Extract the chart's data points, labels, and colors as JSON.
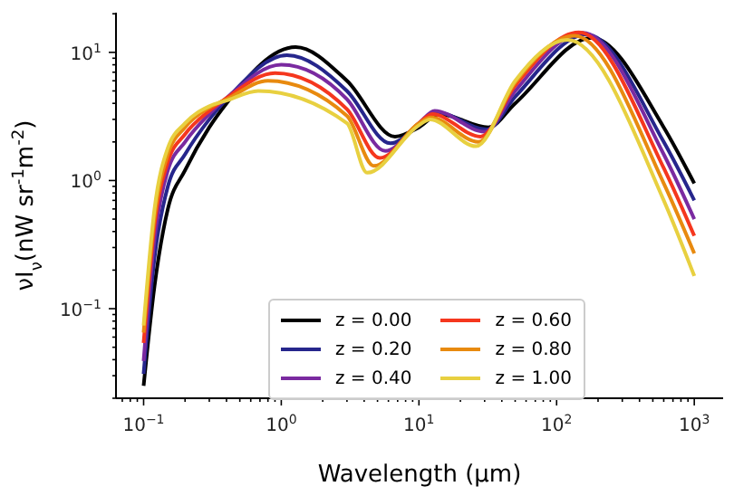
{
  "chart_data": {
    "type": "line",
    "xlabel": "Wavelength (μm)",
    "ylabel": "νI$_{ν}$(nW sr$^{-1}$m$^{-2}$)",
    "log": "xy",
    "legend": "bottom",
    "line_style": "solid",
    "xlim": [
      0.063,
      1620
    ],
    "ylim": [
      0.02,
      20.4
    ],
    "xticks": [
      {
        "value": 0.07,
        "label": null
      },
      {
        "value": 0.08,
        "label": null
      },
      {
        "value": 0.09,
        "label": null
      },
      {
        "value": 0.1,
        "label": "10$^{−1}$"
      },
      {
        "value": 0.2,
        "label": null
      },
      {
        "value": 0.3,
        "label": null
      },
      {
        "value": 0.4,
        "label": null
      },
      {
        "value": 0.5,
        "label": null
      },
      {
        "value": 0.6,
        "label": null
      },
      {
        "value": 0.7,
        "label": null
      },
      {
        "value": 0.8,
        "label": null
      },
      {
        "value": 0.9,
        "label": null
      },
      {
        "value": 1,
        "label": "10$^{0}$"
      },
      {
        "value": 2,
        "label": null
      },
      {
        "value": 3,
        "label": null
      },
      {
        "value": 4,
        "label": null
      },
      {
        "value": 5,
        "label": null
      },
      {
        "value": 6,
        "label": null
      },
      {
        "value": 7,
        "label": null
      },
      {
        "value": 8,
        "label": null
      },
      {
        "value": 9,
        "label": null
      },
      {
        "value": 10,
        "label": "10$^{1}$"
      },
      {
        "value": 20,
        "label": null
      },
      {
        "value": 30,
        "label": null
      },
      {
        "value": 40,
        "label": null
      },
      {
        "value": 50,
        "label": null
      },
      {
        "value": 60,
        "label": null
      },
      {
        "value": 70,
        "label": null
      },
      {
        "value": 80,
        "label": null
      },
      {
        "value": 90,
        "label": null
      },
      {
        "value": 100,
        "label": "10$^{2}$"
      },
      {
        "value": 200,
        "label": null
      },
      {
        "value": 300,
        "label": null
      },
      {
        "value": 400,
        "label": null
      },
      {
        "value": 500,
        "label": null
      },
      {
        "value": 600,
        "label": null
      },
      {
        "value": 700,
        "label": null
      },
      {
        "value": 800,
        "label": null
      },
      {
        "value": 900,
        "label": null
      },
      {
        "value": 1000,
        "label": "10$^{3}$"
      }
    ],
    "yticks": [
      {
        "value": 0.02,
        "label": null
      },
      {
        "value": 0.03,
        "label": null
      },
      {
        "value": 0.04,
        "label": null
      },
      {
        "value": 0.05,
        "label": null
      },
      {
        "value": 0.06,
        "label": null
      },
      {
        "value": 0.07,
        "label": null
      },
      {
        "value": 0.08,
        "label": null
      },
      {
        "value": 0.09,
        "label": null
      },
      {
        "value": 0.1,
        "label": "10$^{−1}$"
      },
      {
        "value": 0.2,
        "label": null
      },
      {
        "value": 0.3,
        "label": null
      },
      {
        "value": 0.4,
        "label": null
      },
      {
        "value": 0.5,
        "label": null
      },
      {
        "value": 0.6,
        "label": null
      },
      {
        "value": 0.7,
        "label": null
      },
      {
        "value": 0.8,
        "label": null
      },
      {
        "value": 0.9,
        "label": null
      },
      {
        "value": 1,
        "label": "10$^{0}$"
      },
      {
        "value": 2,
        "label": null
      },
      {
        "value": 3,
        "label": null
      },
      {
        "value": 4,
        "label": null
      },
      {
        "value": 5,
        "label": null
      },
      {
        "value": 6,
        "label": null
      },
      {
        "value": 7,
        "label": null
      },
      {
        "value": 8,
        "label": null
      },
      {
        "value": 9,
        "label": null
      },
      {
        "value": 10,
        "label": "10$^{1}$"
      },
      {
        "value": 20,
        "label": null
      }
    ],
    "series": [
      {
        "name": "z = 0.00",
        "color": "#000000",
        "x": [
          0.1,
          0.12,
          0.15,
          0.2,
          0.3,
          0.4,
          1.27,
          3,
          6.7,
          10,
          14,
          32,
          50,
          180,
          600,
          1000
        ],
        "values": [
          0.025,
          0.15,
          0.6,
          1.2,
          2.6,
          4.0,
          11,
          6.0,
          2.2,
          2.6,
          3.3,
          2.6,
          4.0,
          13,
          2.6,
          0.95
        ]
      },
      {
        "name": "z = 0.20",
        "color": "#26268c",
        "x": [
          0.1,
          0.12,
          0.15,
          0.2,
          0.3,
          0.4,
          1.1,
          3,
          6.2,
          10,
          13.5,
          31,
          50,
          165,
          600,
          1000
        ],
        "values": [
          0.031,
          0.25,
          0.9,
          1.6,
          3.0,
          4.3,
          9.5,
          5.0,
          1.95,
          2.7,
          3.4,
          2.5,
          4.5,
          13.8,
          2.0,
          0.7
        ]
      },
      {
        "name": "z = 0.40",
        "color": "#7a2aa0",
        "x": [
          0.1,
          0.12,
          0.15,
          0.2,
          0.3,
          0.4,
          1.0,
          3,
          5.7,
          10,
          13,
          30,
          50,
          155,
          600,
          1000
        ],
        "values": [
          0.039,
          0.35,
          1.2,
          2.0,
          3.3,
          4.4,
          8.0,
          4.3,
          1.7,
          2.8,
          3.5,
          2.4,
          5.0,
          14.2,
          1.6,
          0.5
        ]
      },
      {
        "name": "z = 0.60",
        "color": "#f5371e",
        "x": [
          0.1,
          0.12,
          0.15,
          0.2,
          0.3,
          0.4,
          0.9,
          3,
          5.2,
          10,
          12.5,
          28,
          50,
          145,
          600,
          1000
        ],
        "values": [
          0.054,
          0.45,
          1.4,
          2.3,
          3.5,
          4.4,
          6.9,
          3.6,
          1.5,
          2.8,
          3.3,
          2.2,
          5.5,
          14.3,
          1.25,
          0.37
        ]
      },
      {
        "name": "z = 0.80",
        "color": "#e88a0f",
        "x": [
          0.1,
          0.12,
          0.15,
          0.2,
          0.3,
          0.4,
          0.8,
          3,
          4.7,
          10,
          12.2,
          27,
          50,
          135,
          600,
          1000
        ],
        "values": [
          0.065,
          0.52,
          1.6,
          2.6,
          3.7,
          4.3,
          6.0,
          3.2,
          1.3,
          2.8,
          3.1,
          2.0,
          5.8,
          13.5,
          0.95,
          0.27
        ]
      },
      {
        "name": "z = 1.00",
        "color": "#e8d040",
        "x": [
          0.1,
          0.12,
          0.15,
          0.2,
          0.3,
          0.4,
          0.68,
          3,
          4.2,
          10,
          12,
          26,
          50,
          120,
          600,
          1000
        ],
        "values": [
          0.074,
          0.6,
          1.8,
          2.8,
          3.8,
          4.2,
          5.0,
          2.8,
          1.15,
          2.7,
          3.0,
          1.85,
          6.0,
          12.5,
          0.7,
          0.18
        ]
      }
    ]
  }
}
